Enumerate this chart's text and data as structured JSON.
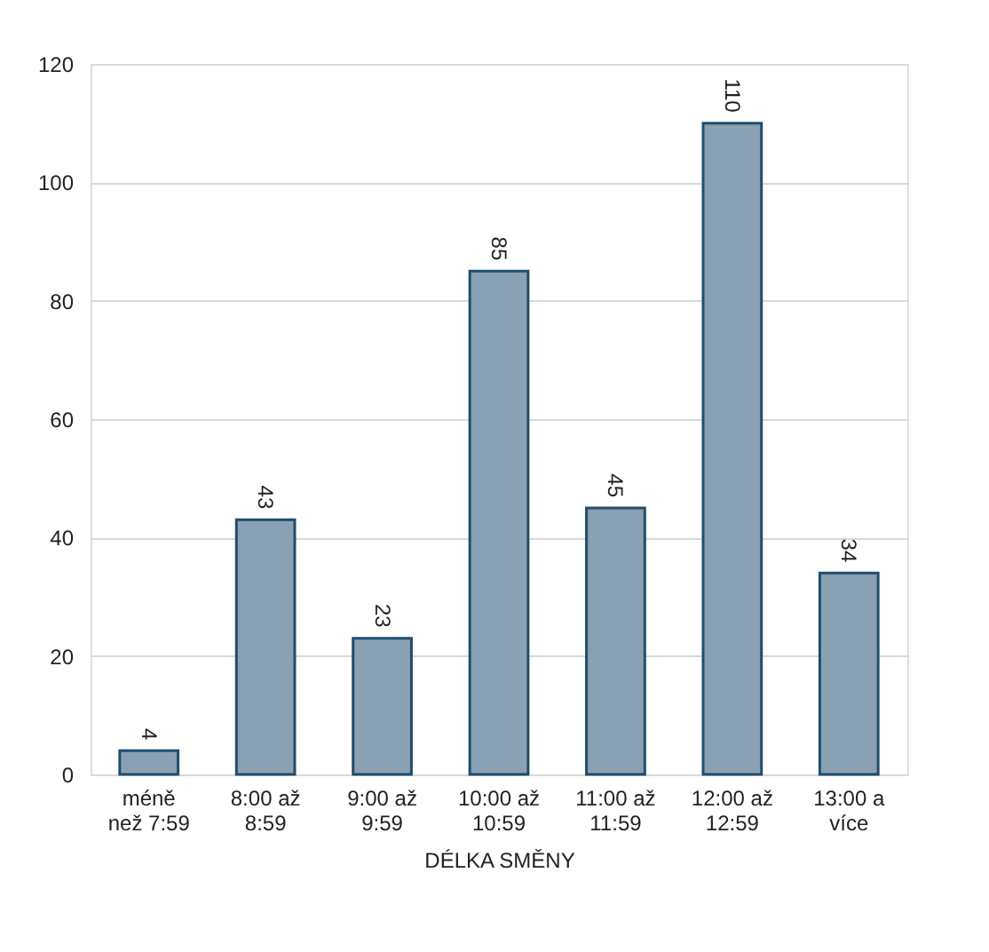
{
  "chart_data": {
    "type": "bar",
    "xlabel": "DÉLKA SMĚNY",
    "categories": [
      "méně než 7:59",
      "8:00 až 8:59",
      "9:00 až 9:59",
      "10:00 až 10:59",
      "11:00 až 11:59",
      "12:00 až 12:59",
      "13:00 a více"
    ],
    "values": [
      4,
      43,
      23,
      85,
      45,
      110,
      34
    ],
    "color": "#8aa0b3",
    "ylim": [
      0,
      120
    ],
    "yticks": [
      0,
      20,
      40,
      60,
      80,
      100,
      120
    ],
    "grid": "y",
    "data_labels": true
  }
}
